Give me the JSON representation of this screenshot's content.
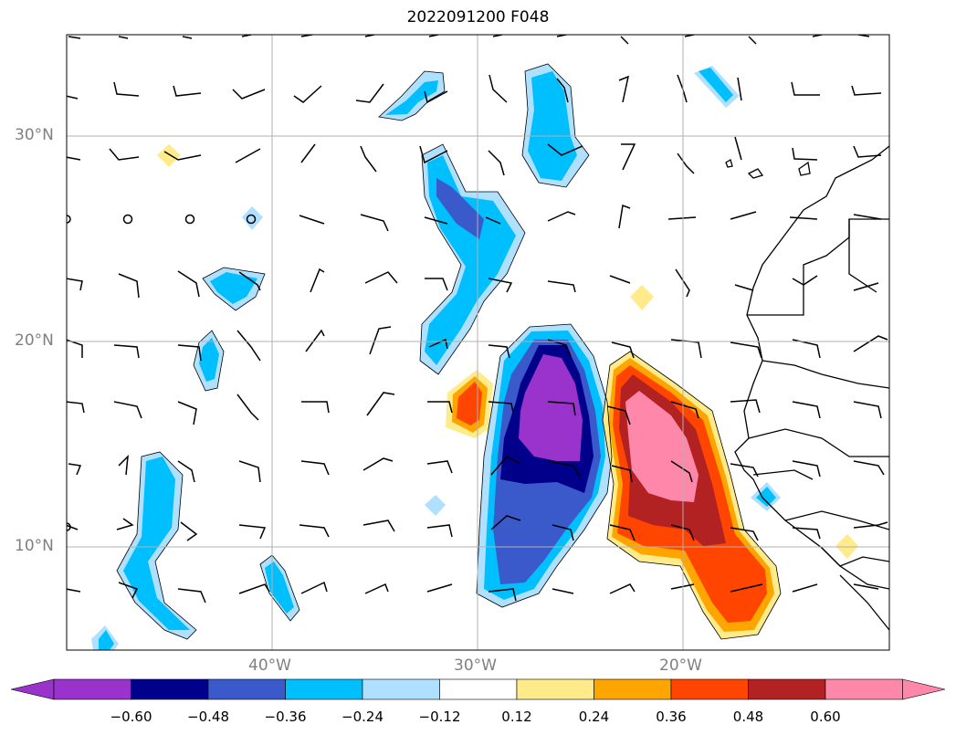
{
  "title": "2022091200 F048",
  "axes": {
    "lon_ticks": [
      "40°W",
      "30°W",
      "20°W"
    ],
    "lat_ticks": [
      "30°N",
      "20°N",
      "10°N"
    ],
    "lon_range": [
      -50,
      -10
    ],
    "lat_range": [
      5,
      35
    ],
    "grid": true
  },
  "colorbar": {
    "labels": [
      "−0.60",
      "−0.48",
      "−0.36",
      "−0.24",
      "−0.12",
      "0.12",
      "0.24",
      "0.36",
      "0.48",
      "0.60"
    ],
    "colors": [
      "#9933cc",
      "#00008b",
      "#3a5acc",
      "#00bfff",
      "#b0e0ff",
      "#ffffff",
      "#ffeb8a",
      "#ffa500",
      "#ff4500",
      "#b22222",
      "#ff88aa"
    ],
    "extend": "both"
  },
  "chart_data": {
    "type": "heatmap",
    "title": "2022091200 F048",
    "levels": [
      -0.6,
      -0.48,
      -0.36,
      -0.24,
      -0.12,
      0.12,
      0.24,
      0.36,
      0.48,
      0.6
    ],
    "x_ticks": [
      "40°W",
      "30°W",
      "20°W"
    ],
    "y_ticks": [
      "30°N",
      "20°N",
      "10°N"
    ],
    "xlim": [
      -50,
      -10
    ],
    "ylim": [
      5,
      35
    ],
    "overlay": "wind barbs",
    "grid": true
  }
}
